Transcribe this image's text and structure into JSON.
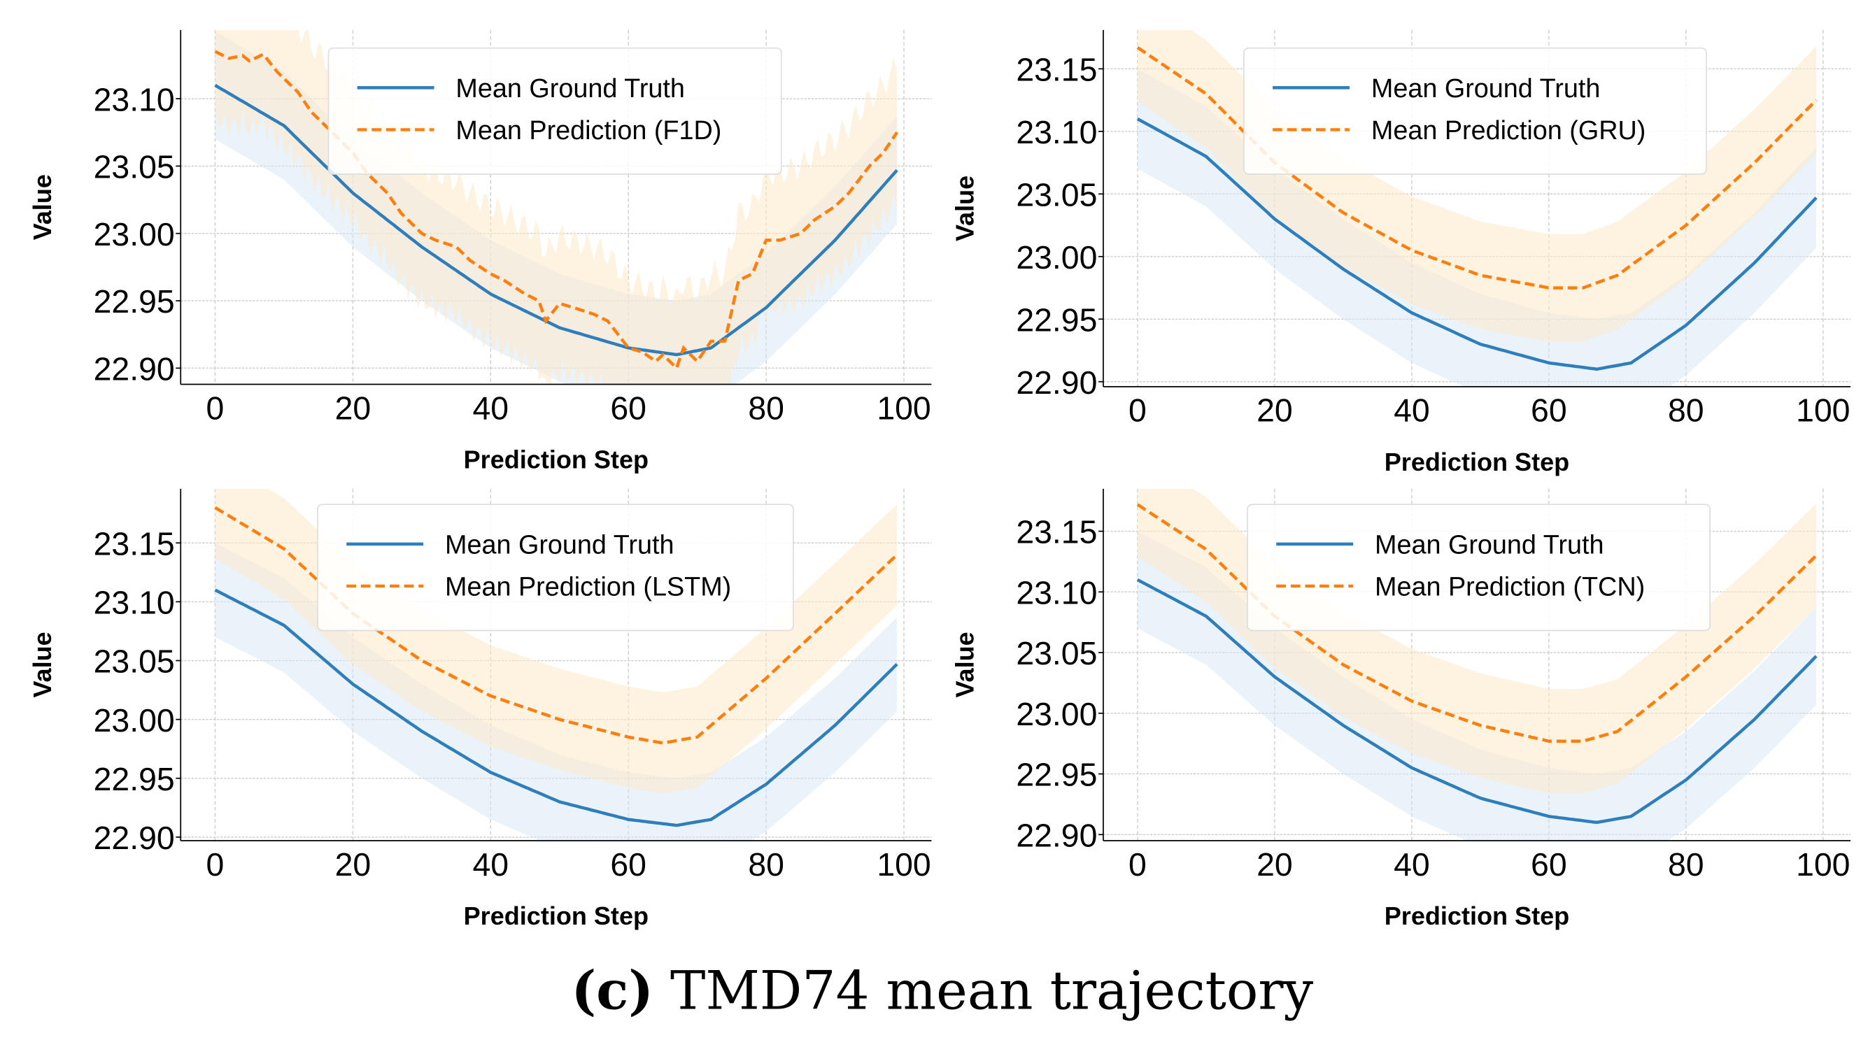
{
  "caption": {
    "label": "(c)",
    "text": " TMD74 mean trajectory"
  },
  "colors": {
    "truth": "#2f7ebc",
    "pred": "#ff7f0e",
    "truth_band": "#d6e6f6",
    "pred_band": "#fde9c8"
  },
  "chart_data": [
    {
      "type": "line",
      "title": "",
      "xlabel": "Prediction Step",
      "ylabel": "Value",
      "xlim": [
        -5,
        104
      ],
      "ylim": [
        22.888,
        23.151
      ],
      "xticks": [
        0,
        20,
        40,
        60,
        80,
        100
      ],
      "yticks": [
        "22.90",
        "22.95",
        "23.00",
        "23.05",
        "23.10"
      ],
      "grid": true,
      "legend": "top-center",
      "series": [
        {
          "name": "Mean Ground Truth",
          "x": [
            0,
            10,
            20,
            30,
            40,
            50,
            60,
            67,
            72,
            80,
            90,
            99
          ],
          "y": [
            23.11,
            23.08,
            23.03,
            22.99,
            22.955,
            22.93,
            22.915,
            22.91,
            22.915,
            22.945,
            22.995,
            23.047
          ],
          "band": 0.04
        },
        {
          "name": "Mean Prediction (F1D)",
          "x": [
            0,
            2,
            4,
            5,
            7,
            9,
            10,
            12,
            14,
            15,
            17,
            20,
            22,
            25,
            27,
            30,
            32,
            35,
            37,
            40,
            42,
            45,
            47,
            48,
            50,
            52,
            55,
            57,
            60,
            62,
            64,
            65,
            67,
            68,
            70,
            72,
            74,
            76,
            78,
            80,
            82,
            85,
            87,
            90,
            92,
            95,
            97,
            99
          ],
          "y": [
            23.135,
            23.13,
            23.132,
            23.128,
            23.133,
            23.12,
            23.115,
            23.105,
            23.09,
            23.085,
            23.075,
            23.06,
            23.045,
            23.03,
            23.015,
            23.0,
            22.995,
            22.99,
            22.98,
            22.97,
            22.965,
            22.955,
            22.95,
            22.935,
            22.948,
            22.945,
            22.94,
            22.935,
            22.915,
            22.912,
            22.905,
            22.91,
            22.9,
            22.915,
            22.905,
            22.92,
            22.92,
            22.965,
            22.97,
            22.995,
            22.995,
            23.0,
            23.01,
            23.02,
            23.03,
            23.05,
            23.06,
            23.075
          ],
          "band": 0.05,
          "noisy": true
        }
      ]
    },
    {
      "type": "line",
      "title": "",
      "xlabel": "Prediction Step",
      "ylabel": "Value",
      "xlim": [
        -5,
        104
      ],
      "ylim": [
        22.896,
        23.181
      ],
      "xticks": [
        0,
        20,
        40,
        60,
        80,
        100
      ],
      "yticks": [
        "22.90",
        "22.95",
        "23.00",
        "23.05",
        "23.10",
        "23.15"
      ],
      "grid": true,
      "legend": "top-center",
      "series": [
        {
          "name": "Mean Ground Truth",
          "x": [
            0,
            10,
            20,
            30,
            40,
            50,
            60,
            67,
            72,
            80,
            90,
            99
          ],
          "y": [
            23.11,
            23.08,
            23.03,
            22.99,
            22.955,
            22.93,
            22.915,
            22.91,
            22.915,
            22.945,
            22.995,
            23.047
          ],
          "band": 0.04
        },
        {
          "name": "Mean Prediction (GRU)",
          "x": [
            0,
            10,
            20,
            30,
            40,
            50,
            60,
            65,
            70,
            80,
            90,
            99
          ],
          "y": [
            23.167,
            23.13,
            23.075,
            23.035,
            23.005,
            22.985,
            22.975,
            22.975,
            22.985,
            23.025,
            23.075,
            23.125
          ],
          "band": 0.043
        }
      ]
    },
    {
      "type": "line",
      "title": "",
      "xlabel": "Prediction Step",
      "ylabel": "Value",
      "xlim": [
        -5,
        104
      ],
      "ylim": [
        22.897,
        23.196
      ],
      "xticks": [
        0,
        20,
        40,
        60,
        80,
        100
      ],
      "yticks": [
        "22.90",
        "22.95",
        "23.00",
        "23.05",
        "23.10",
        "23.15"
      ],
      "grid": true,
      "legend": "top-center",
      "series": [
        {
          "name": "Mean Ground Truth",
          "x": [
            0,
            10,
            20,
            30,
            40,
            50,
            60,
            67,
            72,
            80,
            90,
            99
          ],
          "y": [
            23.11,
            23.08,
            23.03,
            22.99,
            22.955,
            22.93,
            22.915,
            22.91,
            22.915,
            22.945,
            22.995,
            23.047
          ],
          "band": 0.04
        },
        {
          "name": "Mean Prediction (LSTM)",
          "x": [
            0,
            10,
            20,
            30,
            40,
            50,
            60,
            65,
            70,
            80,
            90,
            99
          ],
          "y": [
            23.18,
            23.145,
            23.09,
            23.05,
            23.02,
            23.0,
            22.985,
            22.98,
            22.985,
            23.035,
            23.09,
            23.14
          ],
          "band": 0.043
        }
      ]
    },
    {
      "type": "line",
      "title": "",
      "xlabel": "Prediction Step",
      "ylabel": "Value",
      "xlim": [
        -5,
        104
      ],
      "ylim": [
        22.895,
        23.185
      ],
      "xticks": [
        0,
        20,
        40,
        60,
        80,
        100
      ],
      "yticks": [
        "22.90",
        "22.95",
        "23.00",
        "23.05",
        "23.10",
        "23.15"
      ],
      "grid": true,
      "legend": "top-center",
      "series": [
        {
          "name": "Mean Ground Truth",
          "x": [
            0,
            10,
            20,
            30,
            40,
            50,
            60,
            67,
            72,
            80,
            90,
            99
          ],
          "y": [
            23.11,
            23.08,
            23.03,
            22.99,
            22.955,
            22.93,
            22.915,
            22.91,
            22.915,
            22.945,
            22.995,
            23.047
          ],
          "band": 0.04
        },
        {
          "name": "Mean Prediction (TCN)",
          "x": [
            0,
            10,
            20,
            30,
            40,
            50,
            60,
            65,
            70,
            80,
            90,
            99
          ],
          "y": [
            23.172,
            23.135,
            23.08,
            23.04,
            23.01,
            22.99,
            22.977,
            22.977,
            22.985,
            23.03,
            23.08,
            23.13
          ],
          "band": 0.043
        }
      ]
    }
  ]
}
